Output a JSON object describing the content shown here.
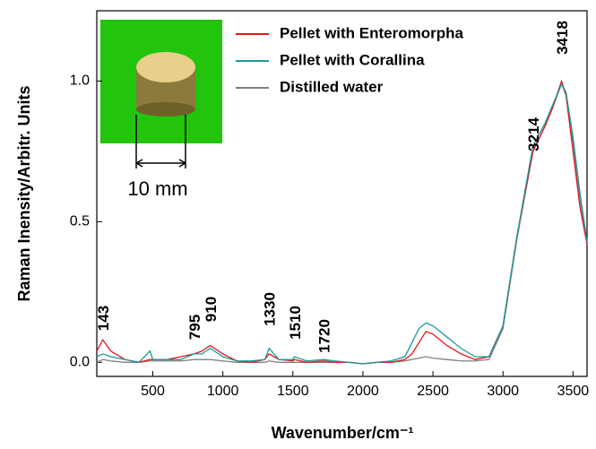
{
  "chart_data": {
    "type": "line",
    "x_label": "Wavenumber/cm⁻¹",
    "y_label": "Raman Inensity/Arbitr. Units",
    "xlim": [
      100,
      3600
    ],
    "ylim": [
      -0.05,
      1.25
    ],
    "xticks": [
      500,
      1000,
      1500,
      2000,
      2500,
      3000,
      3500
    ],
    "yticks": [
      {
        "value": 0,
        "label": "0.0"
      },
      0.5,
      {
        "value": 1,
        "label": "1.0"
      }
    ],
    "legend": "upper right",
    "x": [
      100,
      143,
      200,
      300,
      400,
      480,
      500,
      600,
      700,
      795,
      850,
      910,
      1000,
      1100,
      1200,
      1300,
      1330,
      1400,
      1500,
      1510,
      1600,
      1720,
      1800,
      1900,
      2000,
      2100,
      2200,
      2300,
      2350,
      2400,
      2450,
      2500,
      2600,
      2700,
      2800,
      2900,
      3000,
      3100,
      3214,
      3300,
      3350,
      3418,
      3450,
      3500,
      3550,
      3600
    ],
    "series": [
      {
        "name": "Pellet with Enteromorpha",
        "color": "#e8141c",
        "values": [
          0.04,
          0.08,
          0.04,
          0.01,
          0.0,
          0.01,
          0.01,
          0.01,
          0.02,
          0.03,
          0.04,
          0.06,
          0.03,
          0.005,
          0.0,
          0.01,
          0.03,
          0.01,
          0.005,
          0.01,
          0.0,
          0.005,
          0.0,
          0.0,
          -0.005,
          0.0,
          0.0,
          0.01,
          0.03,
          0.07,
          0.11,
          0.1,
          0.06,
          0.03,
          0.01,
          0.02,
          0.13,
          0.45,
          0.75,
          0.84,
          0.9,
          1.0,
          0.95,
          0.75,
          0.55,
          0.42
        ]
      },
      {
        "name": "Pellet with Corallina",
        "color": "#1a9a9a",
        "values": [
          0.02,
          0.03,
          0.02,
          0.01,
          0.0,
          0.04,
          0.01,
          0.01,
          0.01,
          0.03,
          0.03,
          0.05,
          0.02,
          0.005,
          0.005,
          0.01,
          0.05,
          0.01,
          0.01,
          0.02,
          0.005,
          0.01,
          0.005,
          0.0,
          -0.005,
          0.0,
          0.005,
          0.02,
          0.07,
          0.12,
          0.14,
          0.13,
          0.09,
          0.05,
          0.02,
          0.02,
          0.13,
          0.45,
          0.77,
          0.85,
          0.91,
          0.99,
          0.96,
          0.8,
          0.6,
          0.43
        ]
      },
      {
        "name": "Distilled water",
        "color": "#808080",
        "values": [
          0.0,
          0.01,
          0.005,
          0.0,
          0.0,
          0.005,
          0.005,
          0.005,
          0.005,
          0.01,
          0.01,
          0.01,
          0.005,
          0.0,
          0.0,
          0.0,
          0.005,
          0.0,
          0.0,
          0.0,
          0.0,
          0.0,
          0.0,
          0.0,
          -0.005,
          0.0,
          0.0,
          0.005,
          0.01,
          0.015,
          0.02,
          0.015,
          0.01,
          0.005,
          0.005,
          0.01,
          0.12,
          0.44,
          0.75,
          0.84,
          0.9,
          0.99,
          0.95,
          0.78,
          0.58,
          0.42
        ]
      }
    ],
    "peak_labels": [
      143,
      795,
      910,
      1330,
      1510,
      1720,
      3214,
      3418
    ],
    "inset_scale": "10 mm"
  }
}
